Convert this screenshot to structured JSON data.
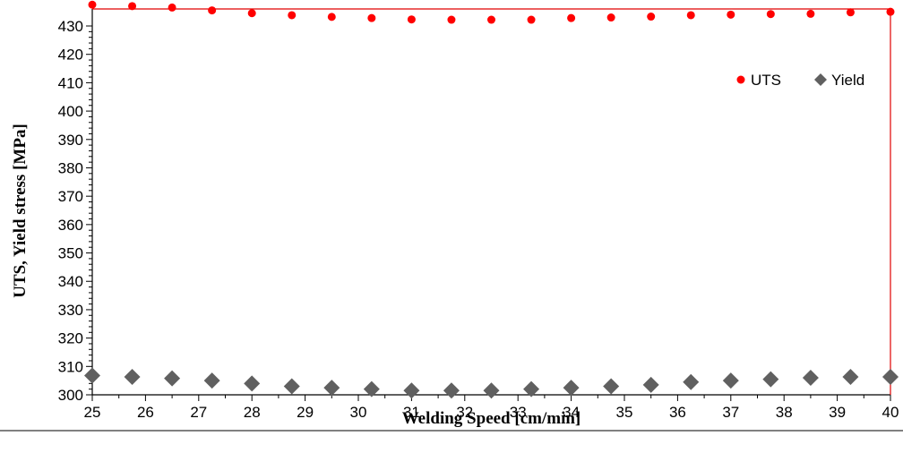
{
  "chart_data": {
    "type": "scatter",
    "title": "",
    "xlabel": "Welding Speed [cm/min]",
    "ylabel": "UTS, Yield stress [MPa]",
    "xlim": [
      25,
      40
    ],
    "ylim": [
      300,
      436
    ],
    "xticks": [
      25,
      26,
      27,
      28,
      29,
      30,
      31,
      32,
      33,
      34,
      35,
      36,
      37,
      38,
      39,
      40
    ],
    "yticks": [
      300,
      310,
      320,
      330,
      340,
      350,
      360,
      370,
      380,
      390,
      400,
      410,
      420,
      430
    ],
    "grid": false,
    "legend_position": "top-right",
    "series": [
      {
        "name": "UTS",
        "marker": "circle",
        "color": "#ff0000",
        "x": [
          25,
          25.75,
          26.5,
          27.25,
          28,
          28.75,
          29.5,
          30.25,
          31,
          31.75,
          32.5,
          33.25,
          34,
          34.75,
          35.5,
          36.25,
          37,
          37.75,
          38.5,
          39.25,
          40
        ],
        "y": [
          437.5,
          437,
          436.5,
          435.5,
          434.5,
          433.8,
          433.2,
          432.8,
          432.3,
          432.2,
          432.2,
          432.2,
          432.8,
          433,
          433.3,
          433.8,
          434,
          434.2,
          434.3,
          434.8,
          435
        ]
      },
      {
        "name": "Yield",
        "marker": "diamond",
        "color": "#606060",
        "x": [
          25,
          25.75,
          26.5,
          27.25,
          28,
          28.75,
          29.5,
          30.25,
          31,
          31.75,
          32.5,
          33.25,
          34,
          34.75,
          35.5,
          36.25,
          37,
          37.75,
          38.5,
          39.25,
          40
        ],
        "y": [
          306.8,
          306.3,
          305.8,
          305,
          304,
          303,
          302.5,
          302,
          301.5,
          301.5,
          301.5,
          302,
          302.5,
          303,
          303.5,
          304.5,
          305,
          305.5,
          306,
          306.3,
          306.3
        ]
      }
    ]
  }
}
